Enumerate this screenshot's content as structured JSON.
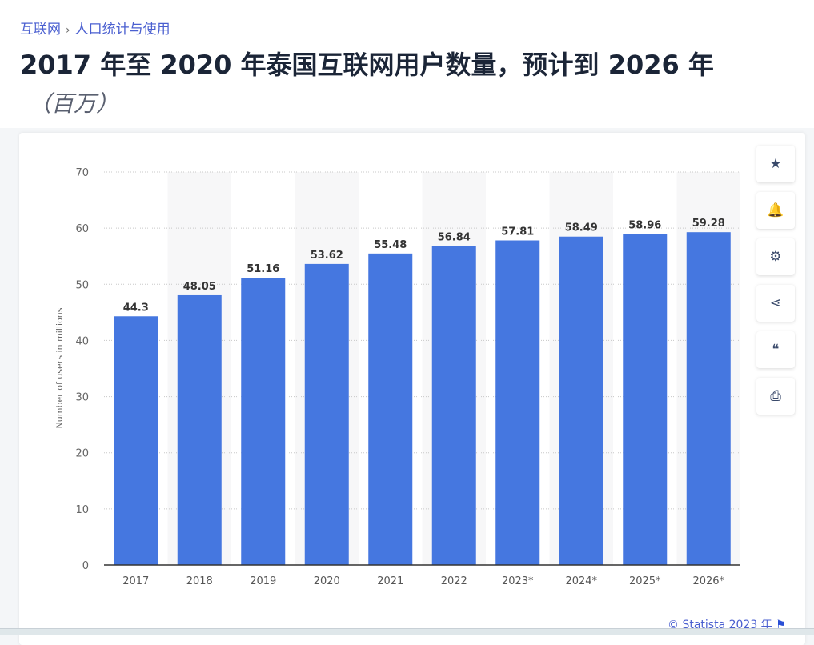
{
  "breadcrumb": {
    "items": [
      "互联网",
      "人口统计与使用"
    ],
    "separator": "›"
  },
  "header": {
    "title": "2017 年至 2020 年泰国互联网用户数量，预计到 2026 年",
    "subtitle": "（百万）"
  },
  "tools": [
    {
      "icon": "star-icon",
      "glyph": "★"
    },
    {
      "icon": "bell-icon",
      "glyph": "🔔"
    },
    {
      "icon": "gear-icon",
      "glyph": "⚙"
    },
    {
      "icon": "share-icon",
      "glyph": "⋖"
    },
    {
      "icon": "quote-icon",
      "glyph": "❝"
    },
    {
      "icon": "print-icon",
      "glyph": "⎙"
    }
  ],
  "credit": "© Statista 2023 年",
  "chart_data": {
    "type": "bar",
    "categories": [
      "2017",
      "2018",
      "2019",
      "2020",
      "2021",
      "2022",
      "2023*",
      "2024*",
      "2025*",
      "2026*"
    ],
    "values": [
      44.3,
      48.05,
      51.16,
      53.62,
      55.48,
      56.84,
      57.81,
      58.49,
      58.96,
      59.28
    ],
    "value_labels": [
      "44.3",
      "48.05",
      "51.16",
      "53.62",
      "55.48",
      "56.84",
      "57.81",
      "58.49",
      "58.96",
      "59.28"
    ],
    "ylabel": "Number of users in millions",
    "xlabel": "",
    "ylim": [
      0,
      70
    ],
    "yticks": [
      0,
      10,
      20,
      30,
      40,
      50,
      60,
      70
    ],
    "grid": true,
    "bar_color": "#4577e0"
  }
}
